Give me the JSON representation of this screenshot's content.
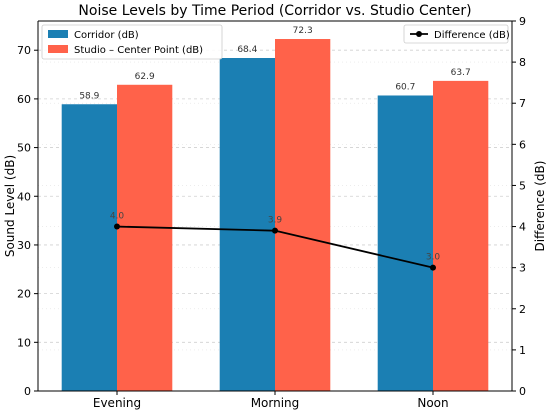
{
  "chart_data": {
    "type": "bar",
    "title": "Noise Levels by Time Period (Corridor vs. Studio Center)",
    "categories": [
      "Evening",
      "Morning",
      "Noon"
    ],
    "series": [
      {
        "name": "Corridor (dB)",
        "values": [
          58.9,
          68.4,
          60.7
        ],
        "color": "#1b7fb3"
      },
      {
        "name": "Studio – Center Point (dB)",
        "values": [
          62.9,
          72.3,
          63.7
        ],
        "color": "#ff624a"
      }
    ],
    "secondary_series": {
      "name": "Difference (dB)",
      "type": "line",
      "values": [
        4.0,
        3.9,
        3.0
      ],
      "color": "#000000",
      "axis": "right"
    },
    "ylabel": "Sound Level (dB)",
    "y2label": "Difference (dB)",
    "ylim": [
      0,
      76
    ],
    "y2lim": [
      0,
      9
    ],
    "yticks": [
      0,
      10,
      20,
      30,
      40,
      50,
      60,
      70
    ],
    "y2ticks": [
      0,
      1,
      2,
      3,
      4,
      5,
      6,
      7,
      8,
      9
    ],
    "grid": "horizontal dashed",
    "legend_left": "top-left",
    "legend_right": "top-right"
  }
}
